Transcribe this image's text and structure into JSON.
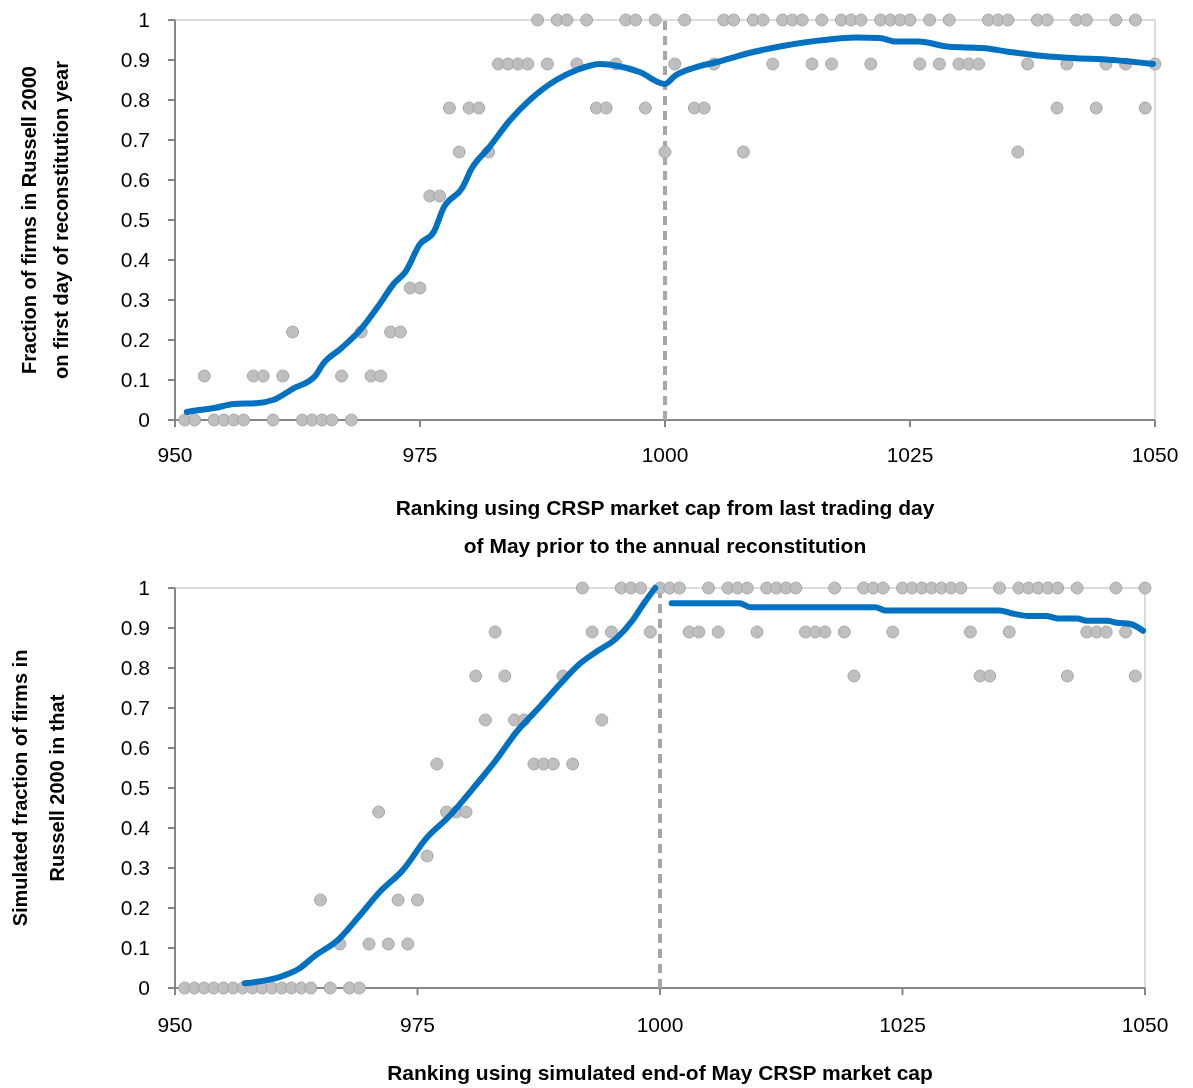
{
  "chart_data": [
    {
      "type": "scatter",
      "xlabel": "Ranking using CRSP market cap from last trading day\nof May prior to the annual reconstitution",
      "ylabel": "Fraction of firms in Russell 2000\non first day of reconstitution year",
      "xlim": [
        950,
        1050
      ],
      "xticks": [
        950,
        975,
        1000,
        1025,
        1050
      ],
      "ylim": [
        0,
        1
      ],
      "yticks": [
        0,
        0.1,
        0.2,
        0.3,
        0.4,
        0.5,
        0.6,
        0.7,
        0.8,
        0.9,
        1
      ],
      "grid": false,
      "ref_lines": [
        {
          "axis": "x",
          "value": 1000,
          "color": "#a6a6a6",
          "line_style": "dashed"
        }
      ],
      "series": [
        {
          "color": "#bfbfbf",
          "marker": "circle",
          "x": [
            951,
            952,
            954,
            955,
            956,
            957,
            960,
            963,
            964,
            965,
            966,
            968,
            953,
            958,
            959,
            961,
            967,
            970,
            971,
            962,
            969,
            972,
            973,
            974,
            975,
            976,
            977,
            979,
            982,
            1000,
            1008,
            1036,
            978,
            980,
            981,
            993,
            994,
            998,
            1003,
            1004,
            1040,
            1044,
            1049,
            983,
            984,
            985,
            986,
            988,
            991,
            995,
            1001,
            1005,
            1011,
            1015,
            1017,
            1021,
            1026,
            1028,
            1030,
            1031,
            1032,
            1037,
            1041,
            1045,
            1047,
            1050,
            987,
            989,
            990,
            992,
            996,
            997,
            999,
            1002,
            1006,
            1007,
            1009,
            1010,
            1012,
            1013,
            1014,
            1016,
            1018,
            1019,
            1020,
            1022,
            1023,
            1024,
            1025,
            1027,
            1029,
            1033,
            1034,
            1035,
            1038,
            1039,
            1042,
            1043,
            1046,
            1048
          ],
          "values": [
            0,
            0,
            0,
            0,
            0,
            0,
            0,
            0,
            0,
            0,
            0,
            0,
            0.11,
            0.11,
            0.11,
            0.11,
            0.11,
            0.11,
            0.11,
            0.22,
            0.22,
            0.22,
            0.22,
            0.33,
            0.33,
            0.56,
            0.56,
            0.67,
            0.67,
            0.67,
            0.67,
            0.67,
            0.78,
            0.78,
            0.78,
            0.78,
            0.78,
            0.78,
            0.78,
            0.78,
            0.78,
            0.78,
            0.78,
            0.89,
            0.89,
            0.89,
            0.89,
            0.89,
            0.89,
            0.89,
            0.89,
            0.89,
            0.89,
            0.89,
            0.89,
            0.89,
            0.89,
            0.89,
            0.89,
            0.89,
            0.89,
            0.89,
            0.89,
            0.89,
            0.89,
            0.89,
            1,
            1,
            1,
            1,
            1,
            1,
            1,
            1,
            1,
            1,
            1,
            1,
            1,
            1,
            1,
            1,
            1,
            1,
            1,
            1,
            1,
            1,
            1,
            1,
            1,
            1,
            1,
            1,
            1,
            1,
            1,
            1,
            1,
            1
          ]
        },
        {
          "type": "line",
          "color": "#0070c0",
          "line_style": "solid",
          "x": [
            951.2,
            952.5,
            954,
            956,
            958.3,
            960,
            962.1,
            964.3,
            965.1,
            967,
            968.9,
            970.9,
            972.3,
            973.5,
            975,
            976.4,
            977.4,
            979.3,
            980.3,
            982,
            984.2,
            986.2,
            988.9,
            991,
            993.4,
            995.2,
            997.4,
            1000,
            1001,
            1002.9,
            1005.3,
            1009,
            1012,
            1016.2,
            1019.5,
            1021.9,
            1023.6,
            1025.9,
            1029,
            1032.4,
            1035.2,
            1038.6,
            1041.6,
            1045.7,
            1049.8
          ],
          "values": [
            0.02,
            0.025,
            0.03,
            0.04,
            0.042,
            0.05,
            0.079,
            0.11,
            0.14,
            0.18,
            0.225,
            0.29,
            0.34,
            0.37,
            0.44,
            0.47,
            0.53,
            0.58,
            0.63,
            0.68,
            0.75,
            0.8,
            0.85,
            0.875,
            0.89,
            0.885,
            0.87,
            0.84,
            0.86,
            0.88,
            0.895,
            0.92,
            0.935,
            0.95,
            0.956,
            0.955,
            0.946,
            0.946,
            0.933,
            0.93,
            0.92,
            0.91,
            0.905,
            0.9,
            0.89
          ]
        }
      ]
    },
    {
      "type": "scatter",
      "xlabel": "Ranking using simulated end-of May CRSP market cap",
      "ylabel": "Simulated fraction of firms in\nRussell 2000 in that",
      "xlim": [
        950,
        1050
      ],
      "xticks": [
        950,
        975,
        1000,
        1025,
        1050
      ],
      "ylim": [
        0,
        1
      ],
      "yticks": [
        0,
        0.1,
        0.2,
        0.3,
        0.4,
        0.5,
        0.6,
        0.7,
        0.8,
        0.9,
        1
      ],
      "grid": false,
      "ref_lines": [
        {
          "axis": "x",
          "value": 1000,
          "color": "#a6a6a6",
          "line_style": "dashed"
        }
      ],
      "series": [
        {
          "color": "#bfbfbf",
          "marker": "circle",
          "x": [
            951,
            952,
            953,
            954,
            955,
            956,
            957,
            958,
            959,
            960,
            961,
            962,
            963,
            964,
            966,
            968,
            969,
            967,
            970,
            972,
            974,
            965,
            973,
            975,
            976,
            971,
            978,
            979,
            980,
            977,
            987,
            988,
            989,
            991,
            982,
            985,
            986,
            994,
            981,
            984,
            990,
            1020,
            1033,
            1034,
            1042,
            1049,
            983,
            993,
            995,
            999,
            1003,
            1004,
            1006,
            1010,
            1015,
            1016,
            1017,
            1019,
            1024,
            1032,
            1036,
            1044,
            1045,
            1046,
            1048,
            992,
            996,
            997,
            998,
            1000,
            1001,
            1002,
            1005,
            1007,
            1008,
            1009,
            1011,
            1012,
            1013,
            1014,
            1018,
            1021,
            1022,
            1023,
            1025,
            1026,
            1027,
            1028,
            1029,
            1030,
            1031,
            1035,
            1037,
            1038,
            1039,
            1040,
            1041,
            1043,
            1047,
            1050
          ],
          "values": [
            0,
            0,
            0,
            0,
            0,
            0,
            0,
            0,
            0,
            0,
            0,
            0,
            0,
            0,
            0,
            0,
            0,
            0.11,
            0.11,
            0.11,
            0.11,
            0.22,
            0.22,
            0.22,
            0.33,
            0.44,
            0.44,
            0.44,
            0.44,
            0.56,
            0.56,
            0.56,
            0.56,
            0.56,
            0.67,
            0.67,
            0.67,
            0.67,
            0.78,
            0.78,
            0.78,
            0.78,
            0.78,
            0.78,
            0.78,
            0.78,
            0.89,
            0.89,
            0.89,
            0.89,
            0.89,
            0.89,
            0.89,
            0.89,
            0.89,
            0.89,
            0.89,
            0.89,
            0.89,
            0.89,
            0.89,
            0.89,
            0.89,
            0.89,
            0.89,
            1,
            1,
            1,
            1,
            1,
            1,
            1,
            1,
            1,
            1,
            1,
            1,
            1,
            1,
            1,
            1,
            1,
            1,
            1,
            1,
            1,
            1,
            1,
            1,
            1,
            1,
            1,
            1,
            1,
            1,
            1,
            1,
            1,
            1,
            1
          ]
        },
        {
          "type": "line",
          "color": "#0070c0",
          "line_style": "solid",
          "x": [
            957.2,
            961.1,
            962.9,
            964.4,
            966.8,
            969,
            971.1,
            973.5,
            975.9,
            978.3,
            981.1,
            983.1,
            985.2,
            987.3,
            989.7,
            991.7,
            993.4,
            995.5,
            997.2,
            998.3,
            999.5
          ],
          "values": [
            0.012,
            0.03,
            0.05,
            0.08,
            0.12,
            0.18,
            0.24,
            0.295,
            0.374,
            0.43,
            0.51,
            0.57,
            0.64,
            0.695,
            0.76,
            0.81,
            0.84,
            0.874,
            0.92,
            0.96,
            1
          ]
        },
        {
          "type": "line",
          "color": "#0070c0",
          "line_style": "solid",
          "x": [
            1001.2,
            1008.2,
            1009.3,
            1022.2,
            1023.2,
            1035,
            1036.2,
            1038.2,
            1039.8,
            1041,
            1043,
            1044,
            1046.1,
            1047.1,
            1048.5,
            1049.8
          ],
          "values": [
            0.962,
            0.962,
            0.952,
            0.952,
            0.944,
            0.944,
            0.937,
            0.93,
            0.93,
            0.924,
            0.924,
            0.918,
            0.918,
            0.913,
            0.91,
            0.893
          ]
        }
      ]
    }
  ]
}
